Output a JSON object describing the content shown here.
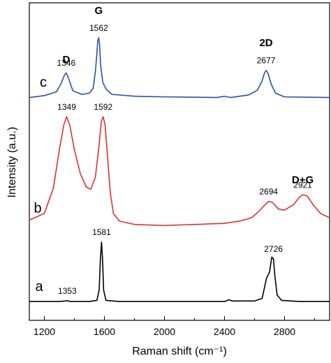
{
  "chart_data": {
    "type": "line",
    "xlabel": "Raman shift (cm⁻¹)",
    "ylabel": "Intensity (a.u.)",
    "xlim": [
      1100,
      3100
    ],
    "xticks": [
      1200,
      1600,
      2000,
      2400,
      2800
    ],
    "yticks": [],
    "grid": false,
    "legend": "none",
    "series": [
      {
        "name": "c",
        "color": "#2e4fa3",
        "points": [
          [
            1100,
            0.03
          ],
          [
            1200,
            0.06
          ],
          [
            1280,
            0.12
          ],
          [
            1310,
            0.25
          ],
          [
            1335,
            0.4
          ],
          [
            1346,
            0.43
          ],
          [
            1360,
            0.35
          ],
          [
            1390,
            0.14
          ],
          [
            1450,
            0.08
          ],
          [
            1500,
            0.1
          ],
          [
            1525,
            0.18
          ],
          [
            1540,
            0.45
          ],
          [
            1550,
            0.75
          ],
          [
            1556,
            0.95
          ],
          [
            1562,
            1.0
          ],
          [
            1568,
            0.9
          ],
          [
            1575,
            0.55
          ],
          [
            1590,
            0.27
          ],
          [
            1610,
            0.17
          ],
          [
            1650,
            0.08
          ],
          [
            1800,
            0.05
          ],
          [
            2000,
            0.04
          ],
          [
            2350,
            0.03
          ],
          [
            2400,
            0.05
          ],
          [
            2440,
            0.03
          ],
          [
            2560,
            0.07
          ],
          [
            2620,
            0.15
          ],
          [
            2650,
            0.3
          ],
          [
            2665,
            0.42
          ],
          [
            2677,
            0.47
          ],
          [
            2690,
            0.42
          ],
          [
            2710,
            0.25
          ],
          [
            2740,
            0.1
          ],
          [
            2800,
            0.04
          ],
          [
            3100,
            0.03
          ]
        ],
        "peak_labels": [
          {
            "x": 1346,
            "y": 0.43,
            "text": "1346"
          },
          {
            "x": 1562,
            "y": 1.0,
            "text": "1562"
          },
          {
            "x": 2677,
            "y": 0.47,
            "text": "2677"
          }
        ]
      },
      {
        "name": "b",
        "color": "#e03030",
        "points": [
          [
            1100,
            0.06
          ],
          [
            1200,
            0.12
          ],
          [
            1260,
            0.35
          ],
          [
            1300,
            0.7
          ],
          [
            1330,
            0.93
          ],
          [
            1349,
            1.0
          ],
          [
            1370,
            0.92
          ],
          [
            1400,
            0.7
          ],
          [
            1440,
            0.48
          ],
          [
            1480,
            0.36
          ],
          [
            1510,
            0.34
          ],
          [
            1540,
            0.45
          ],
          [
            1565,
            0.75
          ],
          [
            1580,
            0.96
          ],
          [
            1592,
            1.0
          ],
          [
            1605,
            0.92
          ],
          [
            1620,
            0.65
          ],
          [
            1640,
            0.3
          ],
          [
            1660,
            0.12
          ],
          [
            1700,
            0.05
          ],
          [
            1800,
            0.02
          ],
          [
            2000,
            0.01
          ],
          [
            2200,
            0.02
          ],
          [
            2400,
            0.03
          ],
          [
            2500,
            0.05
          ],
          [
            2580,
            0.08
          ],
          [
            2630,
            0.14
          ],
          [
            2670,
            0.2
          ],
          [
            2694,
            0.23
          ],
          [
            2720,
            0.22
          ],
          [
            2760,
            0.16
          ],
          [
            2800,
            0.15
          ],
          [
            2860,
            0.2
          ],
          [
            2900,
            0.27
          ],
          [
            2921,
            0.29
          ],
          [
            2950,
            0.28
          ],
          [
            2990,
            0.2
          ],
          [
            3040,
            0.12
          ],
          [
            3100,
            0.08
          ]
        ],
        "peak_labels": [
          {
            "x": 1349,
            "y": 1.0,
            "text": "1349"
          },
          {
            "x": 1592,
            "y": 1.0,
            "text": "1592"
          },
          {
            "x": 2694,
            "y": 0.23,
            "text": "2694"
          },
          {
            "x": 2921,
            "y": 0.29,
            "text": "2921"
          }
        ]
      },
      {
        "name": "a",
        "color": "#000000",
        "points": [
          [
            1100,
            0.01
          ],
          [
            1300,
            0.01
          ],
          [
            1340,
            0.02
          ],
          [
            1353,
            0.025
          ],
          [
            1370,
            0.01
          ],
          [
            1500,
            0.01
          ],
          [
            1550,
            0.03
          ],
          [
            1565,
            0.2
          ],
          [
            1573,
            0.7
          ],
          [
            1581,
            1.0
          ],
          [
            1588,
            0.7
          ],
          [
            1595,
            0.2
          ],
          [
            1610,
            0.03
          ],
          [
            1700,
            0.01
          ],
          [
            2000,
            0.01
          ],
          [
            2400,
            0.01
          ],
          [
            2430,
            0.04
          ],
          [
            2450,
            0.02
          ],
          [
            2600,
            0.02
          ],
          [
            2650,
            0.06
          ],
          [
            2680,
            0.4
          ],
          [
            2700,
            0.5
          ],
          [
            2715,
            0.75
          ],
          [
            2726,
            0.72
          ],
          [
            2735,
            0.45
          ],
          [
            2750,
            0.12
          ],
          [
            2780,
            0.03
          ],
          [
            2900,
            0.01
          ],
          [
            3100,
            0.01
          ]
        ],
        "peak_labels": [
          {
            "x": 1353,
            "y": 0.025,
            "text": "1353"
          },
          {
            "x": 1581,
            "y": 1.0,
            "text": "1581"
          },
          {
            "x": 2726,
            "y": 0.72,
            "text": "2726"
          }
        ]
      }
    ],
    "band_labels": [
      {
        "text": "D",
        "x": 1346
      },
      {
        "text": "G",
        "x": 1562
      },
      {
        "text": "2D",
        "x": 2677
      },
      {
        "text": "D+G",
        "x": 2921
      }
    ]
  }
}
